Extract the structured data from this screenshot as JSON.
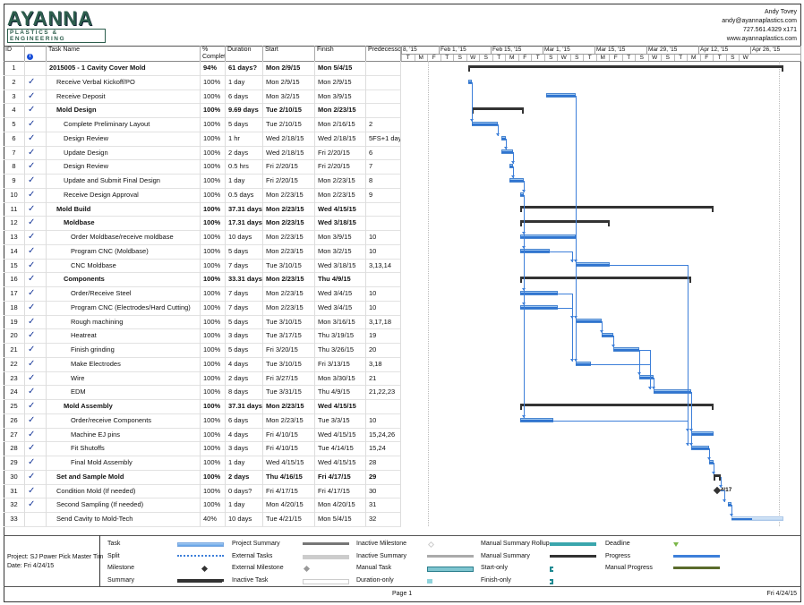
{
  "header": {
    "logo_text": "AYANNA",
    "logo_sub": "PLASTICS & ENGINEERING",
    "contact": [
      "Andy Tovey",
      "andy@ayannaplastics.com",
      "727.561.4329 x171",
      "www.ayannaplastics.com"
    ]
  },
  "columns": {
    "id": "ID",
    "indicator_icon": "info-icon",
    "name": "Task Name",
    "pct": "% Complete",
    "duration": "Duration",
    "start": "Start",
    "finish": "Finish",
    "pred": "Predecessors"
  },
  "timeline": {
    "weeks": [
      "8, '15",
      "Feb 1, '15",
      "Feb 15, '15",
      "Mar 1, '15",
      "Mar 15, '15",
      "Mar 29, '15",
      "Apr 12, '15",
      "Apr 26, '15"
    ],
    "days": [
      "T",
      "M",
      "F",
      "T",
      "S",
      "W",
      "S",
      "T",
      "M",
      "F",
      "T",
      "S",
      "W",
      "S",
      "T",
      "M",
      "F",
      "T",
      "S",
      "W",
      "S",
      "T",
      "M",
      "F",
      "T",
      "S",
      "W"
    ],
    "milestone_label": "4/17"
  },
  "tasks": [
    {
      "id": "1",
      "name": "2015005 - 1 Cavity Cover Mold",
      "pct": "94%",
      "dur": "61 days?",
      "start": "Mon 2/9/15",
      "finish": "Mon 5/4/15",
      "pred": "",
      "lvl": 0,
      "sum": true,
      "done": false
    },
    {
      "id": "2",
      "name": "Receive Verbal Kickoff/PO",
      "pct": "100%",
      "dur": "1 day",
      "start": "Mon 2/9/15",
      "finish": "Mon 2/9/15",
      "pred": "",
      "lvl": 1,
      "done": true
    },
    {
      "id": "3",
      "name": "Receive Deposit",
      "pct": "100%",
      "dur": "6 days",
      "start": "Mon 3/2/15",
      "finish": "Mon 3/9/15",
      "pred": "",
      "lvl": 1,
      "done": true
    },
    {
      "id": "4",
      "name": "Mold Design",
      "pct": "100%",
      "dur": "9.69 days",
      "start": "Tue 2/10/15",
      "finish": "Mon 2/23/15",
      "pred": "",
      "lvl": 1,
      "sum": true,
      "done": true
    },
    {
      "id": "5",
      "name": "Complete Preliminary Layout",
      "pct": "100%",
      "dur": "5 days",
      "start": "Tue 2/10/15",
      "finish": "Mon 2/16/15",
      "pred": "2",
      "lvl": 2,
      "done": true
    },
    {
      "id": "6",
      "name": "Design Review",
      "pct": "100%",
      "dur": "1 hr",
      "start": "Wed 2/18/15",
      "finish": "Wed 2/18/15",
      "pred": "5FS+1 day",
      "lvl": 2,
      "done": true
    },
    {
      "id": "7",
      "name": "Update Design",
      "pct": "100%",
      "dur": "2 days",
      "start": "Wed 2/18/15",
      "finish": "Fri 2/20/15",
      "pred": "6",
      "lvl": 2,
      "done": true
    },
    {
      "id": "8",
      "name": "Design Review",
      "pct": "100%",
      "dur": "0.5 hrs",
      "start": "Fri 2/20/15",
      "finish": "Fri 2/20/15",
      "pred": "7",
      "lvl": 2,
      "done": true
    },
    {
      "id": "9",
      "name": "Update and Submit Final Design",
      "pct": "100%",
      "dur": "1 day",
      "start": "Fri 2/20/15",
      "finish": "Mon 2/23/15",
      "pred": "8",
      "lvl": 2,
      "done": true
    },
    {
      "id": "10",
      "name": "Receive Design Approval",
      "pct": "100%",
      "dur": "0.5 days",
      "start": "Mon 2/23/15",
      "finish": "Mon 2/23/15",
      "pred": "9",
      "lvl": 2,
      "done": true
    },
    {
      "id": "11",
      "name": "Mold Build",
      "pct": "100%",
      "dur": "37.31 days",
      "start": "Mon 2/23/15",
      "finish": "Wed 4/15/15",
      "pred": "",
      "lvl": 1,
      "sum": true,
      "done": true
    },
    {
      "id": "12",
      "name": "Moldbase",
      "pct": "100%",
      "dur": "17.31 days",
      "start": "Mon 2/23/15",
      "finish": "Wed 3/18/15",
      "pred": "",
      "lvl": 2,
      "sum": true,
      "done": true
    },
    {
      "id": "13",
      "name": "Order Moldbase/receive moldbase",
      "pct": "100%",
      "dur": "10 days",
      "start": "Mon 2/23/15",
      "finish": "Mon 3/9/15",
      "pred": "10",
      "lvl": 3,
      "done": true
    },
    {
      "id": "14",
      "name": "Program CNC (Moldbase)",
      "pct": "100%",
      "dur": "5 days",
      "start": "Mon 2/23/15",
      "finish": "Mon 3/2/15",
      "pred": "10",
      "lvl": 3,
      "done": true
    },
    {
      "id": "15",
      "name": "CNC Moldbase",
      "pct": "100%",
      "dur": "7 days",
      "start": "Tue 3/10/15",
      "finish": "Wed 3/18/15",
      "pred": "3,13,14",
      "lvl": 3,
      "done": true
    },
    {
      "id": "16",
      "name": "Components",
      "pct": "100%",
      "dur": "33.31 days",
      "start": "Mon 2/23/15",
      "finish": "Thu 4/9/15",
      "pred": "",
      "lvl": 2,
      "sum": true,
      "done": true
    },
    {
      "id": "17",
      "name": "Order/Receive Steel",
      "pct": "100%",
      "dur": "7 days",
      "start": "Mon 2/23/15",
      "finish": "Wed 3/4/15",
      "pred": "10",
      "lvl": 3,
      "done": true
    },
    {
      "id": "18",
      "name": "Program CNC (Electrodes/Hard Cutting)",
      "pct": "100%",
      "dur": "7 days",
      "start": "Mon 2/23/15",
      "finish": "Wed 3/4/15",
      "pred": "10",
      "lvl": 3,
      "done": true
    },
    {
      "id": "19",
      "name": "Rough machining",
      "pct": "100%",
      "dur": "5 days",
      "start": "Tue 3/10/15",
      "finish": "Mon 3/16/15",
      "pred": "3,17,18",
      "lvl": 3,
      "done": true
    },
    {
      "id": "20",
      "name": "Heatreat",
      "pct": "100%",
      "dur": "3 days",
      "start": "Tue 3/17/15",
      "finish": "Thu 3/19/15",
      "pred": "19",
      "lvl": 3,
      "done": true
    },
    {
      "id": "21",
      "name": "Finish grinding",
      "pct": "100%",
      "dur": "5 days",
      "start": "Fri 3/20/15",
      "finish": "Thu 3/26/15",
      "pred": "20",
      "lvl": 3,
      "done": true
    },
    {
      "id": "22",
      "name": "Make Electrodes",
      "pct": "100%",
      "dur": "4 days",
      "start": "Tue 3/10/15",
      "finish": "Fri 3/13/15",
      "pred": "3,18",
      "lvl": 3,
      "done": true
    },
    {
      "id": "23",
      "name": "Wire",
      "pct": "100%",
      "dur": "2 days",
      "start": "Fri 3/27/15",
      "finish": "Mon 3/30/15",
      "pred": "21",
      "lvl": 3,
      "done": true
    },
    {
      "id": "24",
      "name": "EDM",
      "pct": "100%",
      "dur": "8 days",
      "start": "Tue 3/31/15",
      "finish": "Thu 4/9/15",
      "pred": "21,22,23",
      "lvl": 3,
      "done": true
    },
    {
      "id": "25",
      "name": "Mold Assembly",
      "pct": "100%",
      "dur": "37.31 days",
      "start": "Mon 2/23/15",
      "finish": "Wed 4/15/15",
      "pred": "",
      "lvl": 2,
      "sum": true,
      "done": true
    },
    {
      "id": "26",
      "name": "Order/receive Components",
      "pct": "100%",
      "dur": "6 days",
      "start": "Mon 2/23/15",
      "finish": "Tue 3/3/15",
      "pred": "10",
      "lvl": 3,
      "done": true
    },
    {
      "id": "27",
      "name": "Machine EJ pins",
      "pct": "100%",
      "dur": "4 days",
      "start": "Fri 4/10/15",
      "finish": "Wed 4/15/15",
      "pred": "15,24,26",
      "lvl": 3,
      "done": true
    },
    {
      "id": "28",
      "name": "Fit Shutoffs",
      "pct": "100%",
      "dur": "3 days",
      "start": "Fri 4/10/15",
      "finish": "Tue 4/14/15",
      "pred": "15,24",
      "lvl": 3,
      "done": true
    },
    {
      "id": "29",
      "name": "Final Mold Assembly",
      "pct": "100%",
      "dur": "1 day",
      "start": "Wed 4/15/15",
      "finish": "Wed 4/15/15",
      "pred": "28",
      "lvl": 3,
      "done": true
    },
    {
      "id": "30",
      "name": "Set and Sample Mold",
      "pct": "100%",
      "dur": "2 days",
      "start": "Thu 4/16/15",
      "finish": "Fri 4/17/15",
      "pred": "29",
      "lvl": 1,
      "sum": true,
      "done": true
    },
    {
      "id": "31",
      "name": "Condition Mold (If needed)",
      "pct": "100%",
      "dur": "0 days?",
      "start": "Fri 4/17/15",
      "finish": "Fri 4/17/15",
      "pred": "30",
      "lvl": 1,
      "done": true,
      "milestone": true
    },
    {
      "id": "32",
      "name": "Second Sampling (If needed)",
      "pct": "100%",
      "dur": "1 day",
      "start": "Mon 4/20/15",
      "finish": "Mon 4/20/15",
      "pred": "31",
      "lvl": 1,
      "done": true
    },
    {
      "id": "33",
      "name": "Send Cavity to Mold-Tech",
      "pct": "40%",
      "dur": "10 days",
      "start": "Tue 4/21/15",
      "finish": "Mon 5/4/15",
      "pred": "32",
      "lvl": 1,
      "done": false,
      "progress": 40
    }
  ],
  "legend": {
    "project": "Project: SJ Power Pick Master Tim",
    "date": "Date: Fri 4/24/15",
    "items": [
      "Task",
      "Split",
      "Milestone",
      "Summary",
      "Project Summary",
      "External Tasks",
      "External Milestone",
      "Inactive Task",
      "Inactive Milestone",
      "Inactive Summary",
      "Manual Task",
      "Duration-only",
      "Manual Summary Rollup",
      "Manual Summary",
      "Start-only",
      "Finish-only",
      "Deadline",
      "Progress",
      "Manual Progress"
    ]
  },
  "footer": {
    "page": "Page 1",
    "date": "Fri 4/24/15"
  }
}
